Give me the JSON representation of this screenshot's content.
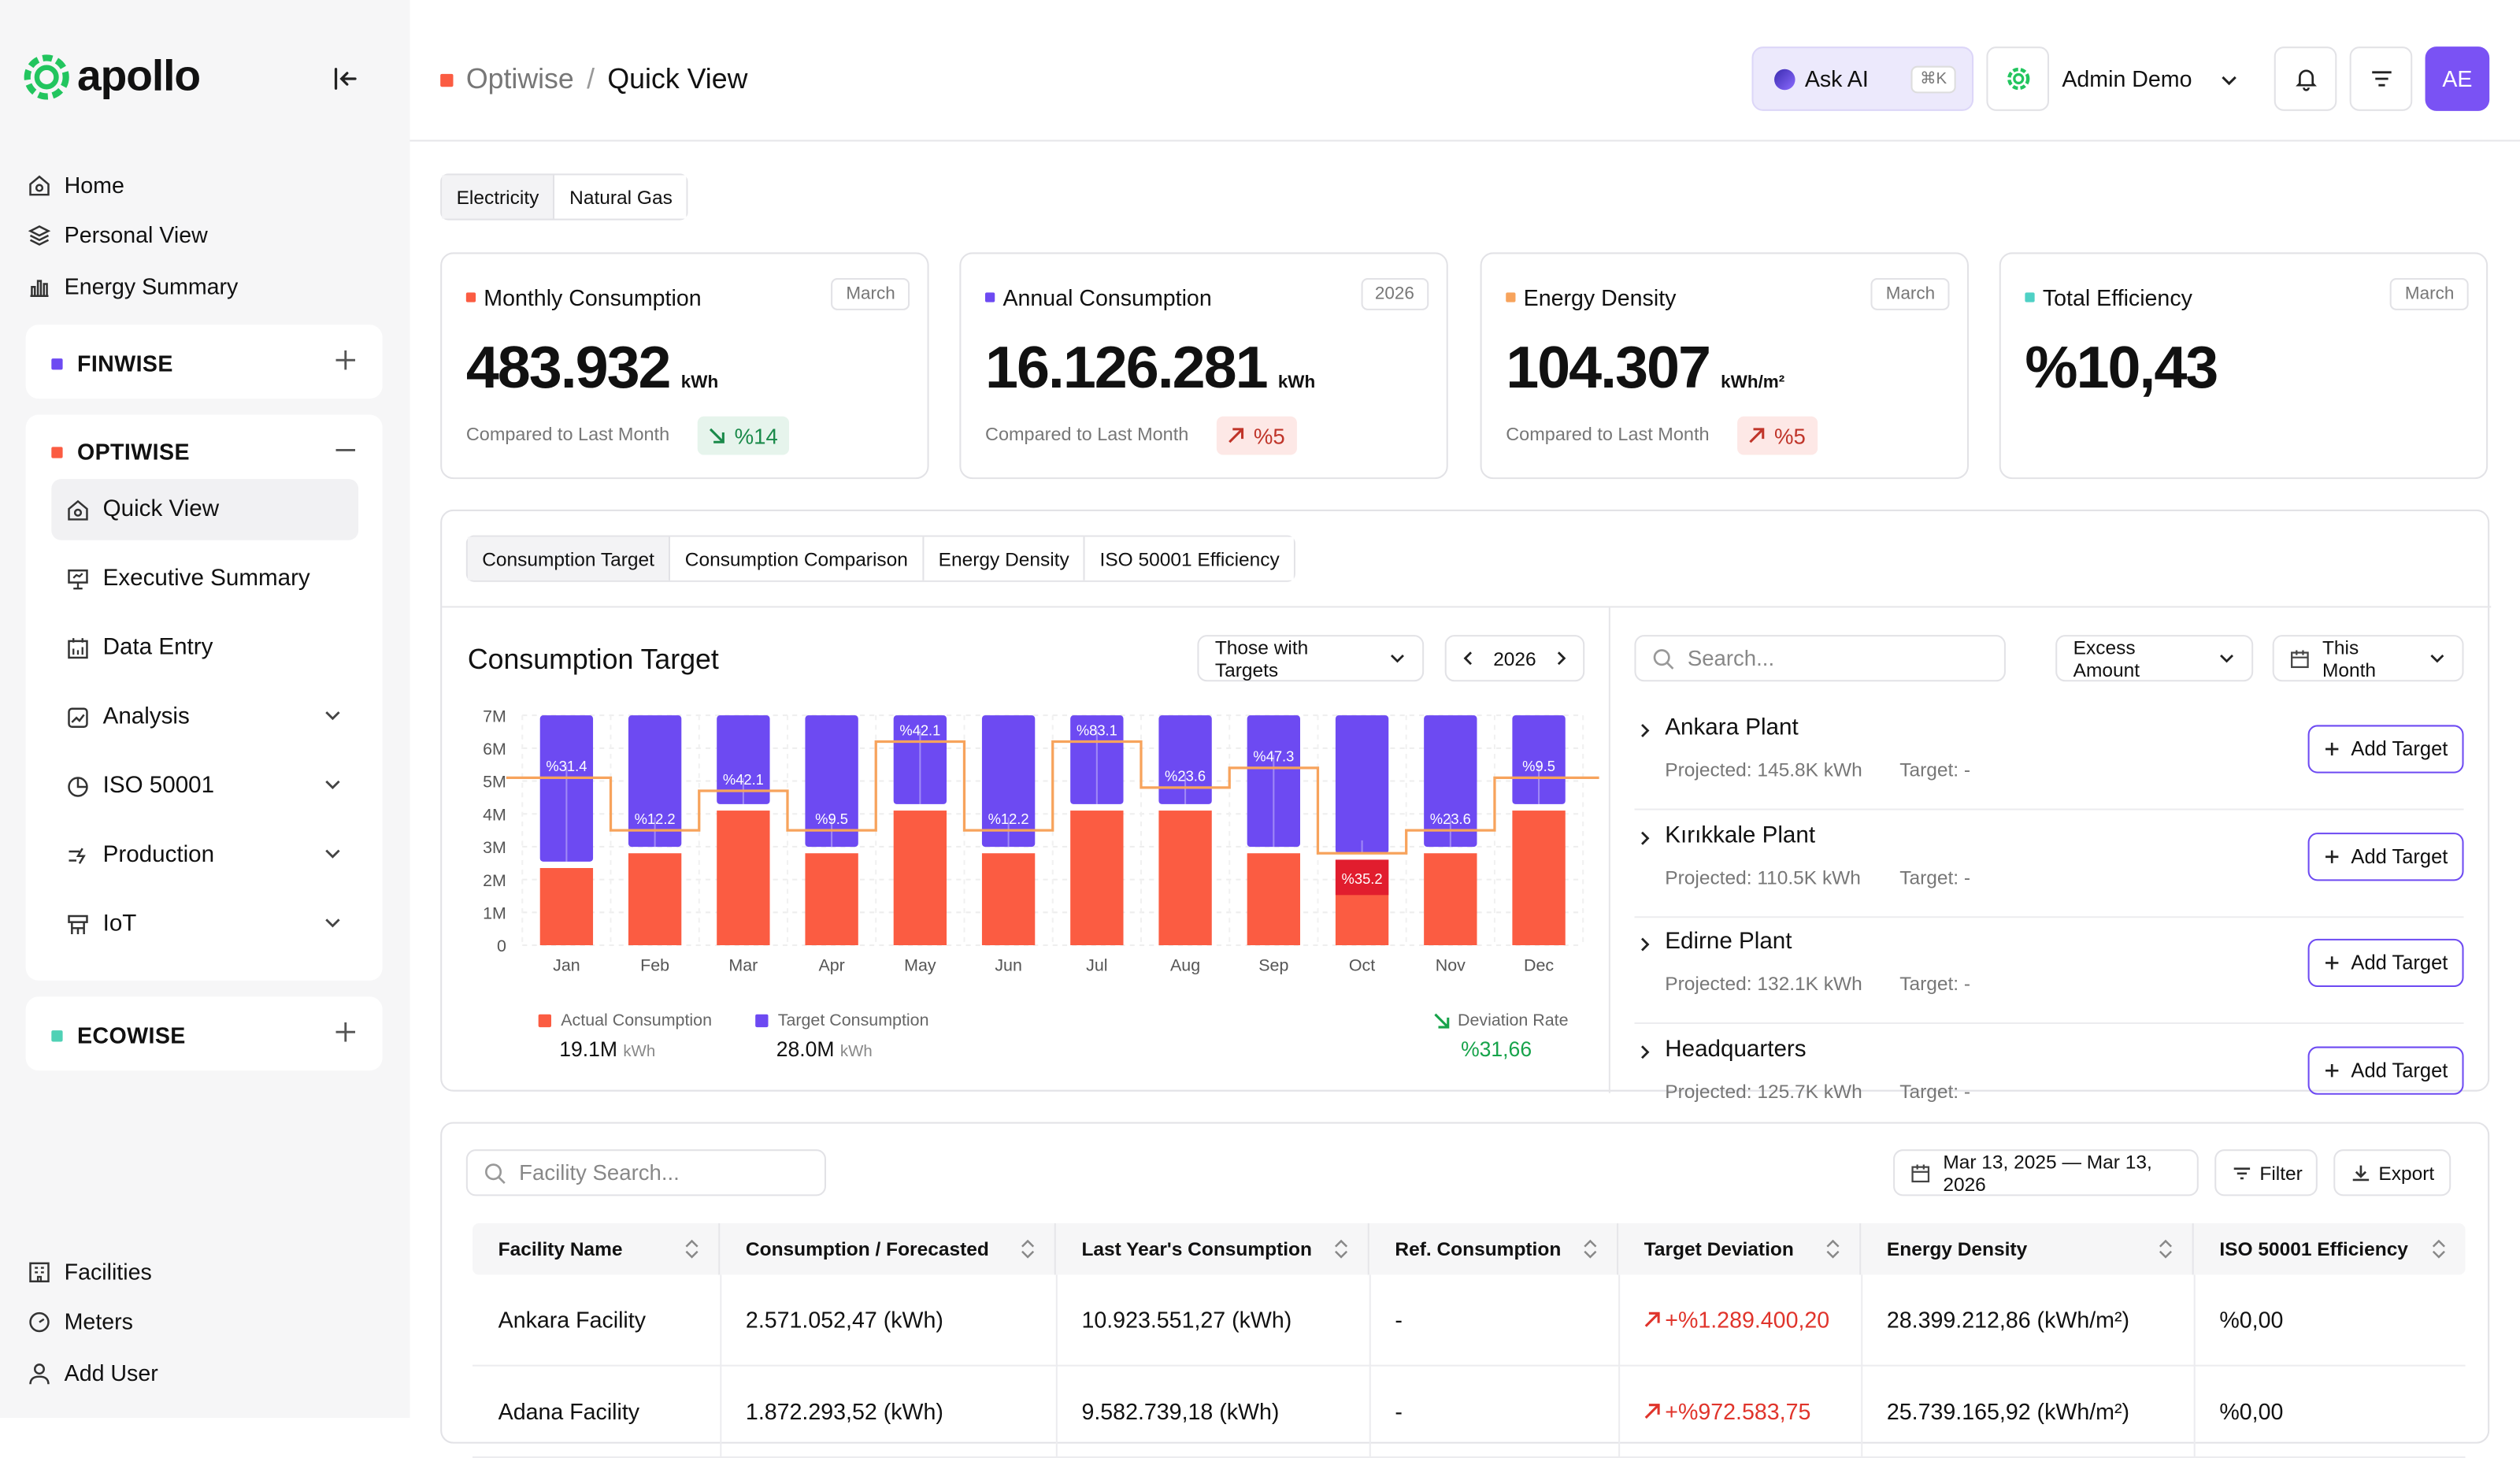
{
  "app": {
    "name": "apollo"
  },
  "sidebar": {
    "top_items": [
      {
        "label": "Home",
        "icon": "home-icon"
      },
      {
        "label": "Personal View",
        "icon": "layers-icon"
      },
      {
        "label": "Energy Summary",
        "icon": "bar-chart-icon"
      }
    ],
    "groups": [
      {
        "label": "FINWISE",
        "color": "#6d4af2"
      },
      {
        "label": "OPTIWISE",
        "color": "#fb5c42"
      },
      {
        "label": "ECOWISE",
        "color": "#4fd1b5"
      }
    ],
    "optiwise_items": [
      {
        "label": "Quick View",
        "icon": "home-icon",
        "active": true
      },
      {
        "label": "Executive Summary",
        "icon": "presentation-icon"
      },
      {
        "label": "Data Entry",
        "icon": "calendar-icon"
      },
      {
        "label": "Analysis",
        "icon": "chart-line-icon"
      },
      {
        "label": "ISO 50001",
        "icon": "pie-icon"
      },
      {
        "label": "Production",
        "icon": "production-icon"
      },
      {
        "label": "IoT",
        "icon": "iot-icon"
      }
    ],
    "bottom_items": [
      {
        "label": "Facilities",
        "icon": "building-icon"
      },
      {
        "label": "Meters",
        "icon": "gauge-icon"
      },
      {
        "label": "Add User",
        "icon": "user-icon"
      }
    ]
  },
  "header": {
    "breadcrumb_parent": "Optiwise",
    "breadcrumb_sep": "/",
    "breadcrumb_current": "Quick View",
    "ask_ai": "Ask AI",
    "shortcut": "⌘K",
    "user_name": "Admin Demo",
    "avatar_initials": "AE"
  },
  "energy_tabs": [
    "Electricity",
    "Natural Gas"
  ],
  "kpis": [
    {
      "title": "Monthly Consumption",
      "period": "March",
      "value": "483.932",
      "unit": "kWh",
      "compare": "Compared to Last Month",
      "delta": "%14",
      "trend": "down",
      "color": "#fb5c42"
    },
    {
      "title": "Annual Consumption",
      "period": "2026",
      "value": "16.126.281",
      "unit": "kWh",
      "compare": "Compared to Last Month",
      "delta": "%5",
      "trend": "up",
      "color": "#6d4af2"
    },
    {
      "title": "Energy Density",
      "period": "March",
      "value": "104.307",
      "unit": "kWh/m²",
      "compare": "Compared to Last Month",
      "delta": "%5",
      "trend": "up",
      "color": "#f7a35c"
    },
    {
      "title": "Total Efficiency",
      "period": "March",
      "value": "%10,43",
      "unit": "",
      "compare": "",
      "delta": "",
      "trend": "",
      "color": "#4fd1c5"
    }
  ],
  "chart_tabs": [
    "Consumption Target",
    "Consumption Comparison",
    "Energy Density",
    "ISO 50001 Efficiency"
  ],
  "chart_panel": {
    "title": "Consumption Target",
    "filter": "Those with Targets",
    "year": "2026"
  },
  "chart_data": {
    "type": "bar",
    "categories": [
      "Jan",
      "Feb",
      "Mar",
      "Apr",
      "May",
      "Jun",
      "Jul",
      "Aug",
      "Sep",
      "Oct",
      "Nov",
      "Dec"
    ],
    "yticks": [
      "7M",
      "6M",
      "5M",
      "4M",
      "3M",
      "2M",
      "1M",
      "0"
    ],
    "ylim": [
      0,
      7000000
    ],
    "series": [
      {
        "name": "Actual Consumption",
        "color": "#fb5c42",
        "values": [
          2350000,
          2800000,
          4100000,
          2800000,
          4100000,
          2800000,
          4100000,
          4100000,
          2800000,
          2600000,
          2800000,
          4100000
        ]
      },
      {
        "name": "Target Consumption",
        "color": "#6d4af2",
        "values": [
          7000000,
          7000000,
          7000000,
          7000000,
          7000000,
          7000000,
          7000000,
          7000000,
          7000000,
          7000000,
          7000000,
          7000000
        ]
      }
    ],
    "deviation_labels": [
      "%31.4",
      "%12.2",
      "%42.1",
      "%9.5",
      "%42.1",
      "%12.2",
      "%83.1",
      "%23.6",
      "%47.3",
      "%35.2",
      "%23.6",
      "%9.5"
    ],
    "target_line": [
      5100000,
      3500000,
      4700000,
      3500000,
      6200000,
      3500000,
      6200000,
      4800000,
      5400000,
      2800000,
      3500000,
      5100000
    ],
    "legend": [
      {
        "label": "Actual Consumption",
        "value": "19.1M",
        "unit": "kWh"
      },
      {
        "label": "Target Consumption",
        "value": "28.0M",
        "unit": "kWh"
      }
    ],
    "deviation": {
      "label": "Deviation Rate",
      "value": "%31,66"
    }
  },
  "plants_panel": {
    "search_placeholder": "Search...",
    "sort": "Excess Amount",
    "period": "This Month",
    "add_label": "Add Target",
    "plants": [
      {
        "name": "Ankara Plant",
        "projected": "Projected: 145.8K kWh",
        "target": "Target: -"
      },
      {
        "name": "Kırıkkale Plant",
        "projected": "Projected: 110.5K kWh",
        "target": "Target: -"
      },
      {
        "name": "Edirne Plant",
        "projected": "Projected: 132.1K kWh",
        "target": "Target: -"
      },
      {
        "name": "Headquarters",
        "projected": "Projected: 125.7K kWh",
        "target": "Target: -"
      }
    ]
  },
  "table": {
    "search_placeholder": "Facility Search...",
    "date_range": "Mar 13, 2025 — Mar 13, 2026",
    "filter": "Filter",
    "export": "Export",
    "columns": [
      "Facility Name",
      "Consumption / Forecasted",
      "Last Year's Consumption",
      "Ref. Consumption",
      "Target Deviation",
      "Energy Density",
      "ISO 50001 Efficiency"
    ],
    "rows": [
      [
        "Ankara Facility",
        "2.571.052,47 (kWh)",
        "10.923.551,27 (kWh)",
        "-",
        "+%1.289.400,20",
        "28.399.212,86 (kWh/m²)",
        "%0,00"
      ],
      [
        "Adana Facility",
        "1.872.293,52 (kWh)",
        "9.582.739,18 (kWh)",
        "-",
        "+%972.583,75",
        "25.739.165,92 (kWh/m²)",
        "%0,00"
      ]
    ]
  }
}
